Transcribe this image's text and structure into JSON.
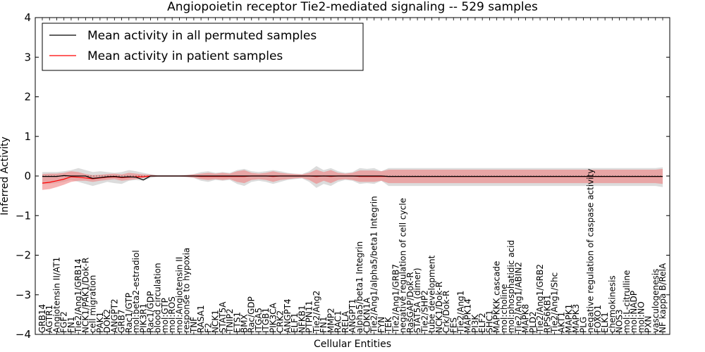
{
  "chart_data": {
    "type": "line",
    "title": "Angiopoietin receptor Tie2-mediated signaling -- 529 samples",
    "xlabel": "Cellular Entities",
    "ylabel": "Inferred Activity",
    "ylim": [
      -4,
      4
    ],
    "yticks": [
      -4,
      -3,
      -2,
      -1,
      0,
      1,
      2,
      3,
      4
    ],
    "grid": false,
    "legend_position": "top-left",
    "colors": {
      "permuted": "#000000",
      "patient": "#ff0000",
      "patient_band": "#f08080",
      "permuted_band": "#bfbfbf"
    },
    "categories": [
      "GRB14",
      "AGTR1",
      "Angiotensin II/AT1",
      "FGF2",
      "FN1",
      "Tie2/Ang1/GRB14",
      "NCK1/PAK1/Dok-R",
      "cell migration",
      "PAK1",
      "DOK2",
      "ANGPT2",
      "GRB7",
      "Rac1/GTP",
      "mol:beta2-estradiol",
      "PIK3R1",
      "Rac1/GDP",
      "blood circulation",
      "mol:GTP",
      "mol:ROS",
      "mol:Angiotensin II",
      "response to hypoxia",
      "TNF",
      "RASA1",
      "F2",
      "NCK1",
      "STAT5A",
      "TNIP2",
      "ETS1",
      "BMX",
      "Rac/GDP",
      "ITGA5",
      "ITGB1",
      "PIK3CA",
      "CRK2",
      "ANGPT4",
      "ELF1",
      "NFKB1",
      "PTPN11",
      "Tie2/Ang2",
      "FN1",
      "MMP2",
      "RAC1",
      "RELA",
      "ANGPT1",
      "alpha5/beta1 Integrin",
      "CDKN1A",
      "Tie2/Ang1/alpha5/beta1 Integrin",
      "FYN",
      "TEK",
      "Tie2/Ang1/GRB7",
      "negative regulation of cell cycle",
      "RasGAP/Dok-R",
      "STAT5A (dimer)",
      "Tie2/SHP2",
      "tube development",
      "NCK1/Dok-R",
      "Crk/Dok-R",
      "FES",
      "Tie2/Ang1",
      "MAPK14",
      "PI3K",
      "ELF2",
      "SHC1",
      "MAPKKK cascade",
      "mol:choline",
      "mol:phosphatidic acid",
      "Tie2/Ang1/ABIN2",
      "MAPK8",
      "PLD2",
      "Tie2/Ang1/GRB2",
      "RPS6KB1",
      "Tie2/Ang1/Shc",
      "AKT1",
      "MAPK1",
      "MAPK3",
      "PLG",
      "negative regulation of caspase activity",
      "FOXO1",
      "ELK1",
      "chemokinesis",
      "NOS3",
      "mol:L-citrulline",
      "mol:NADP",
      "mol:NO",
      "PXN",
      "vasculogenesis",
      "NF kappa B/RelA"
    ],
    "series": [
      {
        "name": "Mean activity in all permuted samples",
        "values": [
          -0.01,
          -0.01,
          -0.01,
          0.01,
          0.0,
          0.0,
          0.0,
          -0.06,
          -0.04,
          -0.02,
          -0.01,
          -0.03,
          -0.02,
          -0.03,
          -0.1,
          0.0,
          0.0,
          0.0,
          0.0,
          0.0,
          0.0,
          0.0,
          0.0,
          0.0,
          0.0,
          0.0,
          0.0,
          0.0,
          0.0,
          0.0,
          0.0,
          0.0,
          0.0,
          0.0,
          0.0,
          0.0,
          0.0,
          0.0,
          0.0,
          0.0,
          0.0,
          0.0,
          0.0,
          0.0,
          0.0,
          0.0,
          0.0,
          0.0,
          -0.01,
          -0.01,
          -0.01,
          -0.01,
          -0.01,
          -0.01,
          -0.01,
          -0.01,
          -0.01,
          -0.01,
          -0.01,
          -0.01,
          -0.01,
          -0.01,
          -0.01,
          -0.01,
          -0.01,
          -0.01,
          -0.01,
          -0.01,
          -0.01,
          -0.01,
          -0.01,
          -0.01,
          -0.01,
          -0.01,
          -0.01,
          -0.01,
          -0.01,
          -0.01,
          -0.01,
          -0.01,
          -0.01,
          -0.01,
          -0.01,
          -0.01,
          -0.01,
          -0.01,
          -0.01
        ],
        "lower": [
          -0.2,
          -0.2,
          -0.18,
          -0.15,
          -0.1,
          -0.15,
          -0.2,
          -0.25,
          -0.2,
          -0.15,
          -0.18,
          -0.2,
          -0.12,
          -0.1,
          -0.12,
          -0.05,
          -0.02,
          -0.02,
          -0.02,
          -0.02,
          -0.03,
          -0.05,
          -0.12,
          -0.15,
          -0.1,
          -0.12,
          -0.1,
          -0.2,
          -0.25,
          -0.15,
          -0.12,
          -0.15,
          -0.2,
          -0.15,
          -0.1,
          -0.08,
          -0.06,
          -0.15,
          -0.3,
          -0.2,
          -0.25,
          -0.15,
          -0.1,
          -0.12,
          -0.2,
          -0.18,
          -0.2,
          -0.12,
          -0.25,
          -0.25,
          -0.25,
          -0.25,
          -0.25,
          -0.25,
          -0.25,
          -0.25,
          -0.25,
          -0.25,
          -0.25,
          -0.25,
          -0.25,
          -0.25,
          -0.25,
          -0.25,
          -0.25,
          -0.25,
          -0.25,
          -0.25,
          -0.25,
          -0.25,
          -0.25,
          -0.25,
          -0.25,
          -0.25,
          -0.25,
          -0.25,
          -0.25,
          -0.25,
          -0.25,
          -0.25,
          -0.25,
          -0.25,
          -0.25,
          -0.25,
          -0.25,
          -0.25,
          -0.28
        ],
        "upper": [
          0.1,
          0.1,
          0.1,
          0.12,
          0.15,
          0.2,
          0.15,
          0.1,
          0.12,
          0.1,
          0.08,
          0.1,
          0.15,
          0.12,
          0.08,
          0.05,
          0.02,
          0.02,
          0.02,
          0.02,
          0.03,
          0.05,
          0.1,
          0.12,
          0.08,
          0.1,
          0.08,
          0.15,
          0.18,
          0.12,
          0.1,
          0.12,
          0.15,
          0.12,
          0.08,
          0.06,
          0.05,
          0.12,
          0.25,
          0.15,
          0.2,
          0.12,
          0.08,
          0.1,
          0.2,
          0.18,
          0.2,
          0.12,
          0.2,
          0.2,
          0.2,
          0.2,
          0.2,
          0.2,
          0.2,
          0.2,
          0.2,
          0.2,
          0.2,
          0.2,
          0.2,
          0.2,
          0.2,
          0.2,
          0.2,
          0.2,
          0.2,
          0.2,
          0.2,
          0.2,
          0.2,
          0.2,
          0.2,
          0.2,
          0.2,
          0.2,
          0.2,
          0.2,
          0.2,
          0.2,
          0.2,
          0.2,
          0.2,
          0.2,
          0.2,
          0.2,
          0.22
        ]
      },
      {
        "name": "Mean activity in patient samples",
        "values": [
          -0.18,
          -0.16,
          -0.12,
          -0.08,
          -0.02,
          -0.03,
          -0.05,
          -0.07,
          -0.05,
          -0.03,
          -0.02,
          -0.04,
          -0.03,
          -0.02,
          -0.02,
          0.0,
          0.0,
          0.0,
          0.0,
          0.0,
          0.0,
          0.0,
          -0.01,
          -0.01,
          -0.01,
          -0.01,
          -0.01,
          -0.01,
          -0.01,
          0.0,
          0.0,
          0.0,
          -0.01,
          0.0,
          0.0,
          0.0,
          0.0,
          0.0,
          -0.01,
          0.0,
          -0.01,
          0.0,
          0.0,
          0.0,
          -0.01,
          -0.01,
          -0.01,
          -0.01,
          -0.01,
          -0.01,
          -0.01,
          -0.01,
          -0.01,
          -0.01,
          -0.01,
          -0.01,
          -0.01,
          -0.01,
          -0.01,
          -0.01,
          -0.01,
          -0.01,
          -0.01,
          -0.01,
          -0.01,
          -0.01,
          -0.01,
          -0.01,
          -0.01,
          -0.01,
          -0.01,
          -0.01,
          -0.01,
          -0.01,
          -0.01,
          -0.01,
          -0.01,
          -0.01,
          -0.01,
          -0.01,
          -0.01,
          -0.01,
          -0.01,
          -0.01,
          -0.01,
          -0.01,
          -0.01
        ],
        "lower": [
          -0.35,
          -0.33,
          -0.28,
          -0.22,
          -0.15,
          -0.12,
          -0.12,
          -0.15,
          -0.12,
          -0.1,
          -0.08,
          -0.12,
          -0.1,
          -0.08,
          -0.05,
          -0.02,
          -0.01,
          -0.01,
          -0.01,
          -0.01,
          -0.02,
          -0.04,
          -0.08,
          -0.1,
          -0.08,
          -0.1,
          -0.08,
          -0.15,
          -0.18,
          -0.1,
          -0.08,
          -0.1,
          -0.15,
          -0.1,
          -0.08,
          -0.06,
          -0.05,
          -0.1,
          -0.2,
          -0.12,
          -0.18,
          -0.1,
          -0.08,
          -0.1,
          -0.15,
          -0.15,
          -0.15,
          -0.12,
          -0.18,
          -0.18,
          -0.18,
          -0.18,
          -0.18,
          -0.18,
          -0.18,
          -0.18,
          -0.18,
          -0.18,
          -0.18,
          -0.18,
          -0.18,
          -0.18,
          -0.18,
          -0.18,
          -0.18,
          -0.18,
          -0.18,
          -0.18,
          -0.18,
          -0.18,
          -0.18,
          -0.18,
          -0.18,
          -0.18,
          -0.18,
          -0.18,
          -0.18,
          -0.18,
          -0.18,
          -0.18,
          -0.18,
          -0.18,
          -0.18,
          -0.18,
          -0.18,
          -0.18,
          -0.2
        ],
        "upper": [
          0.05,
          0.06,
          0.06,
          0.08,
          0.12,
          0.1,
          0.05,
          0.02,
          0.03,
          0.05,
          0.06,
          0.04,
          0.08,
          0.06,
          0.04,
          0.03,
          0.01,
          0.01,
          0.01,
          0.01,
          0.02,
          0.04,
          0.06,
          0.08,
          0.06,
          0.08,
          0.06,
          0.12,
          0.15,
          0.08,
          0.06,
          0.08,
          0.12,
          0.08,
          0.06,
          0.05,
          0.04,
          0.08,
          0.16,
          0.1,
          0.15,
          0.08,
          0.06,
          0.08,
          0.14,
          0.14,
          0.14,
          0.12,
          0.16,
          0.16,
          0.16,
          0.16,
          0.16,
          0.16,
          0.16,
          0.16,
          0.16,
          0.16,
          0.16,
          0.16,
          0.16,
          0.16,
          0.16,
          0.16,
          0.16,
          0.16,
          0.16,
          0.16,
          0.16,
          0.16,
          0.16,
          0.16,
          0.16,
          0.16,
          0.16,
          0.16,
          0.16,
          0.16,
          0.16,
          0.16,
          0.16,
          0.16,
          0.16,
          0.16,
          0.16,
          0.16,
          0.18
        ]
      }
    ]
  }
}
